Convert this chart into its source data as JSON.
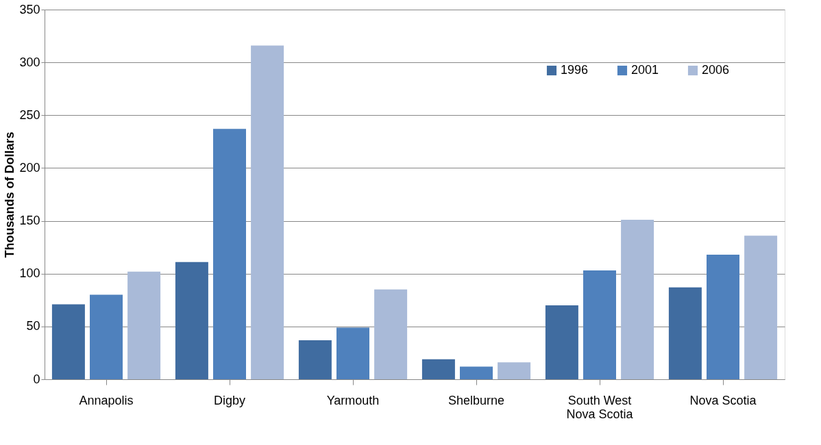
{
  "chart_data": {
    "type": "bar",
    "ylabel": "Thousands of Dollars",
    "categories": [
      "Annapolis",
      "Digby",
      "Yarmouth",
      "Shelburne",
      "South West\nNova Scotia",
      "Nova Scotia"
    ],
    "series": [
      {
        "name": "1996",
        "color": "#406ca0",
        "values": [
          71,
          111,
          37,
          19,
          70,
          87
        ]
      },
      {
        "name": "2001",
        "color": "#4f81bd",
        "values": [
          80,
          237,
          49,
          12,
          103,
          118
        ]
      },
      {
        "name": "2006",
        "color": "#a9bad8",
        "values": [
          102,
          316,
          85,
          16,
          151,
          136
        ]
      }
    ],
    "ylim": [
      0,
      350
    ],
    "yticks": [
      0,
      50,
      100,
      150,
      200,
      250,
      300,
      350
    ],
    "grid": "y",
    "legend": "top right"
  }
}
